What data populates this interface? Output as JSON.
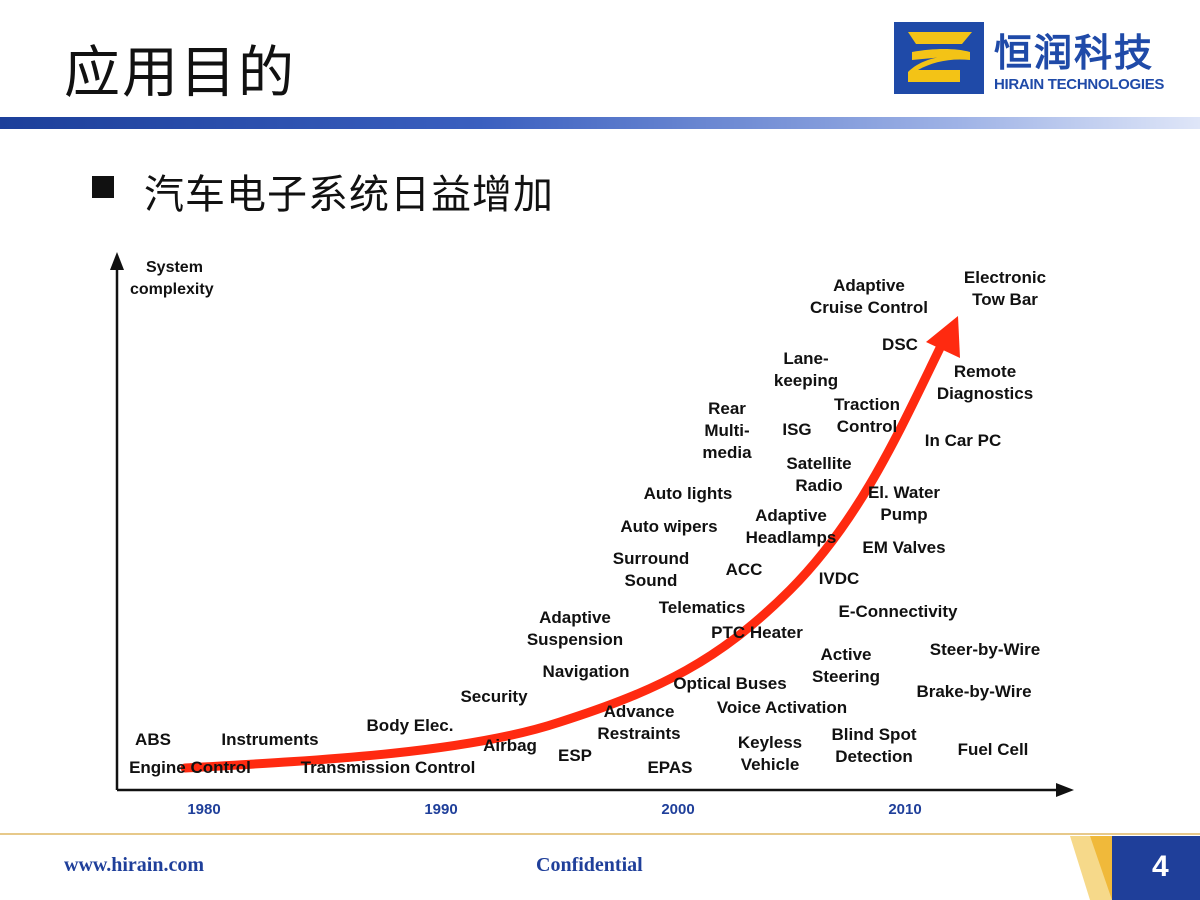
{
  "slide": {
    "title": "应用目的",
    "bullet": "汽车电子系统日益增加",
    "page_number": "4"
  },
  "logo": {
    "name_cn": "恒润科技",
    "name_en": "HIRAIN TECHNOLOGIES"
  },
  "footer": {
    "url": "www.hirain.com",
    "confidential": "Confidential"
  },
  "diagram": {
    "y_axis_label": [
      "System",
      "complexity"
    ],
    "x_ticks": [
      "1980",
      "1990",
      "2000",
      "2010"
    ],
    "labels": [
      [
        "ABS"
      ],
      [
        "Engine Control"
      ],
      [
        "Instruments"
      ],
      [
        "Transmission Control"
      ],
      [
        "Body Elec."
      ],
      [
        "Security"
      ],
      [
        "Airbag"
      ],
      [
        "ESP"
      ],
      [
        "Navigation"
      ],
      [
        "Adaptive",
        "Suspension"
      ],
      [
        "Advance",
        "Restraints"
      ],
      [
        "EPAS"
      ],
      [
        "Optical Buses"
      ],
      [
        "Voice Activation"
      ],
      [
        "Keyless",
        "Vehicle"
      ],
      [
        "Telematics"
      ],
      [
        "PTC Heater"
      ],
      [
        "Surround",
        "Sound"
      ],
      [
        "ACC"
      ],
      [
        "Auto wipers"
      ],
      [
        "Auto lights"
      ],
      [
        "Adaptive",
        "Headlamps"
      ],
      [
        "Rear",
        "Multi-",
        "media"
      ],
      [
        "ISG"
      ],
      [
        "Satellite",
        "Radio"
      ],
      [
        "Lane-",
        "keeping"
      ],
      [
        "Traction",
        "Control"
      ],
      [
        "DSC"
      ],
      [
        "Adaptive",
        "Cruise Control"
      ],
      [
        "Electronic",
        "Tow Bar"
      ],
      [
        "Remote",
        "Diagnostics"
      ],
      [
        "In Car PC"
      ],
      [
        "El. Water",
        "Pump"
      ],
      [
        "EM Valves"
      ],
      [
        "IVDC"
      ],
      [
        "E-Connectivity"
      ],
      [
        "Active",
        "Steering"
      ],
      [
        "Steer-by-Wire"
      ],
      [
        "Brake-by-Wire"
      ],
      [
        "Blind Spot",
        "Detection"
      ],
      [
        "Fuel Cell"
      ]
    ],
    "colors": {
      "arrow": "#ff2a10",
      "axis": "#111111",
      "tick": "#1f3f9a"
    }
  }
}
